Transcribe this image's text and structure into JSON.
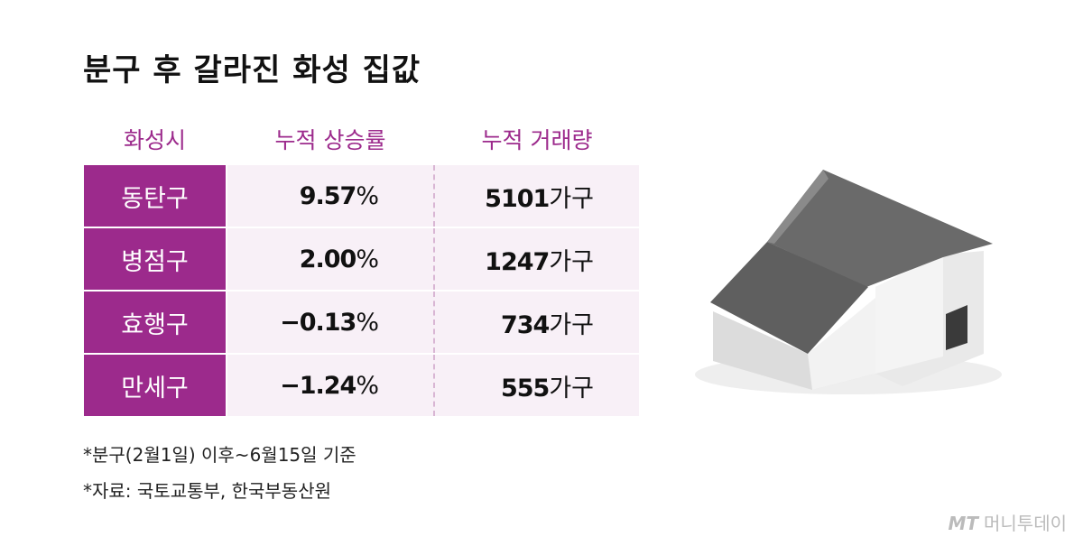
{
  "header": {
    "title": "분구 후 갈라진 화성 집값"
  },
  "table": {
    "columns": [
      "화성시",
      "누적 상승률",
      "누적 거래량"
    ],
    "rows": [
      {
        "district": "동탄구",
        "rise": {
          "number": "9.57",
          "unit": "%"
        },
        "volume": {
          "number": "5101",
          "unit": "가구"
        }
      },
      {
        "district": "병점구",
        "rise": {
          "number": "2.00",
          "unit": "%"
        },
        "volume": {
          "number": "1247",
          "unit": "가구"
        }
      },
      {
        "district": "효행구",
        "rise": {
          "number": "−0.13",
          "unit": "%"
        },
        "volume": {
          "number": "734",
          "unit": "가구"
        }
      },
      {
        "district": "만세구",
        "rise": {
          "number": "−1.24",
          "unit": "%"
        },
        "volume": {
          "number": "555",
          "unit": "가구"
        }
      }
    ]
  },
  "notes": [
    "*분구(2월1일) 이후~6월15일 기준",
    "*자료: 국토교통부, 한국부동산원"
  ],
  "logo": {
    "mark": "MT",
    "name": "머니투데이"
  }
}
